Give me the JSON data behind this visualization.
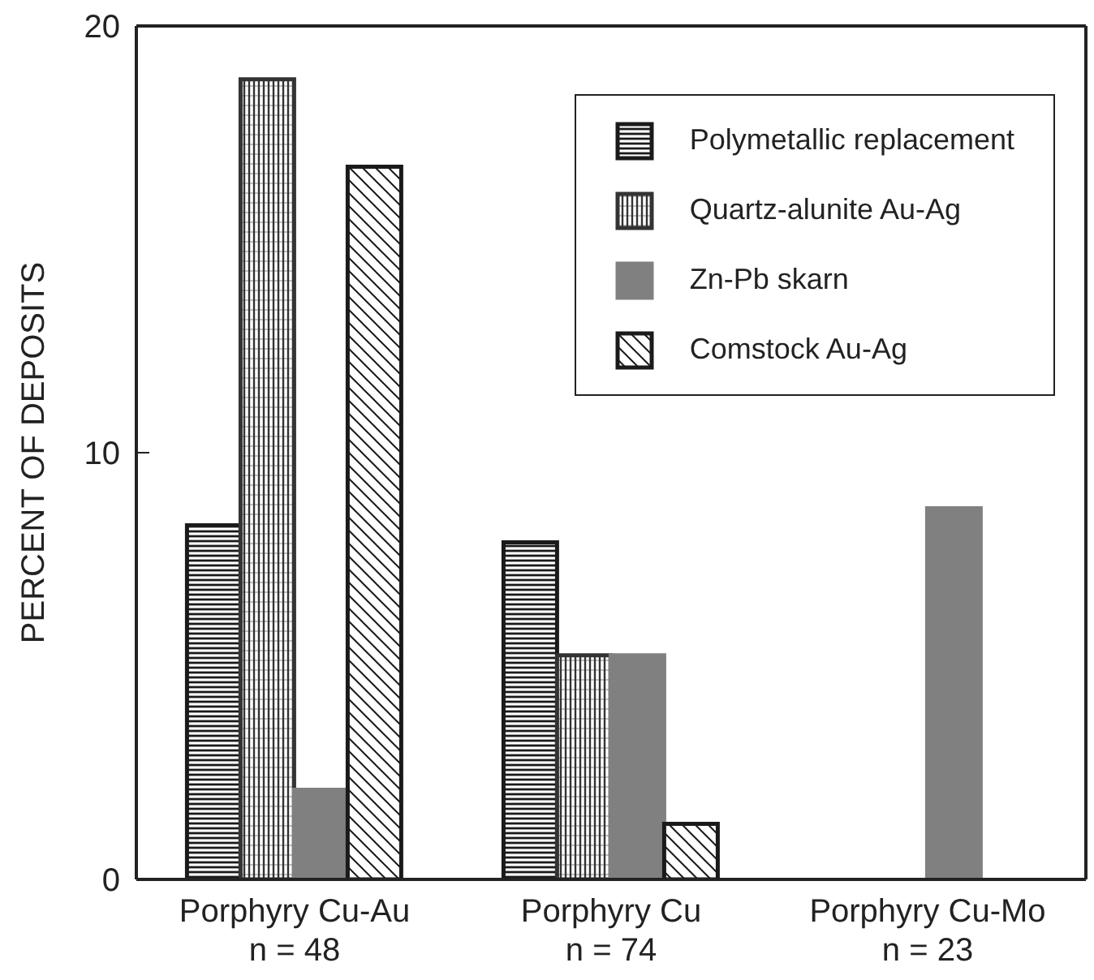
{
  "chart_data": {
    "type": "bar",
    "ylabel": "PERCENT OF DEPOSITS",
    "categories": [
      "Porphyry Cu-Au\nn = 48",
      "Porphyry Cu\nn = 74",
      "Porphyry Cu-Mo\nn = 23"
    ],
    "series": [
      {
        "name": "Polymetallic replacement",
        "color": "#1a1a1a",
        "values": [
          8.3,
          7.9,
          0
        ]
      },
      {
        "name": "Quartz-alunite Au-Ag",
        "color": "#333333",
        "values": [
          18.75,
          5.25,
          0
        ]
      },
      {
        "name": "Zn-Pb skarn",
        "color": "#808080",
        "values": [
          2.1,
          5.25,
          8.7
        ]
      },
      {
        "name": "Comstock Au-Ag",
        "color": "#1a1a1a",
        "values": [
          16.7,
          1.3,
          0
        ]
      }
    ],
    "ylim": [
      0,
      20
    ],
    "yticks": [
      0,
      10,
      20
    ],
    "legend": "top right"
  }
}
